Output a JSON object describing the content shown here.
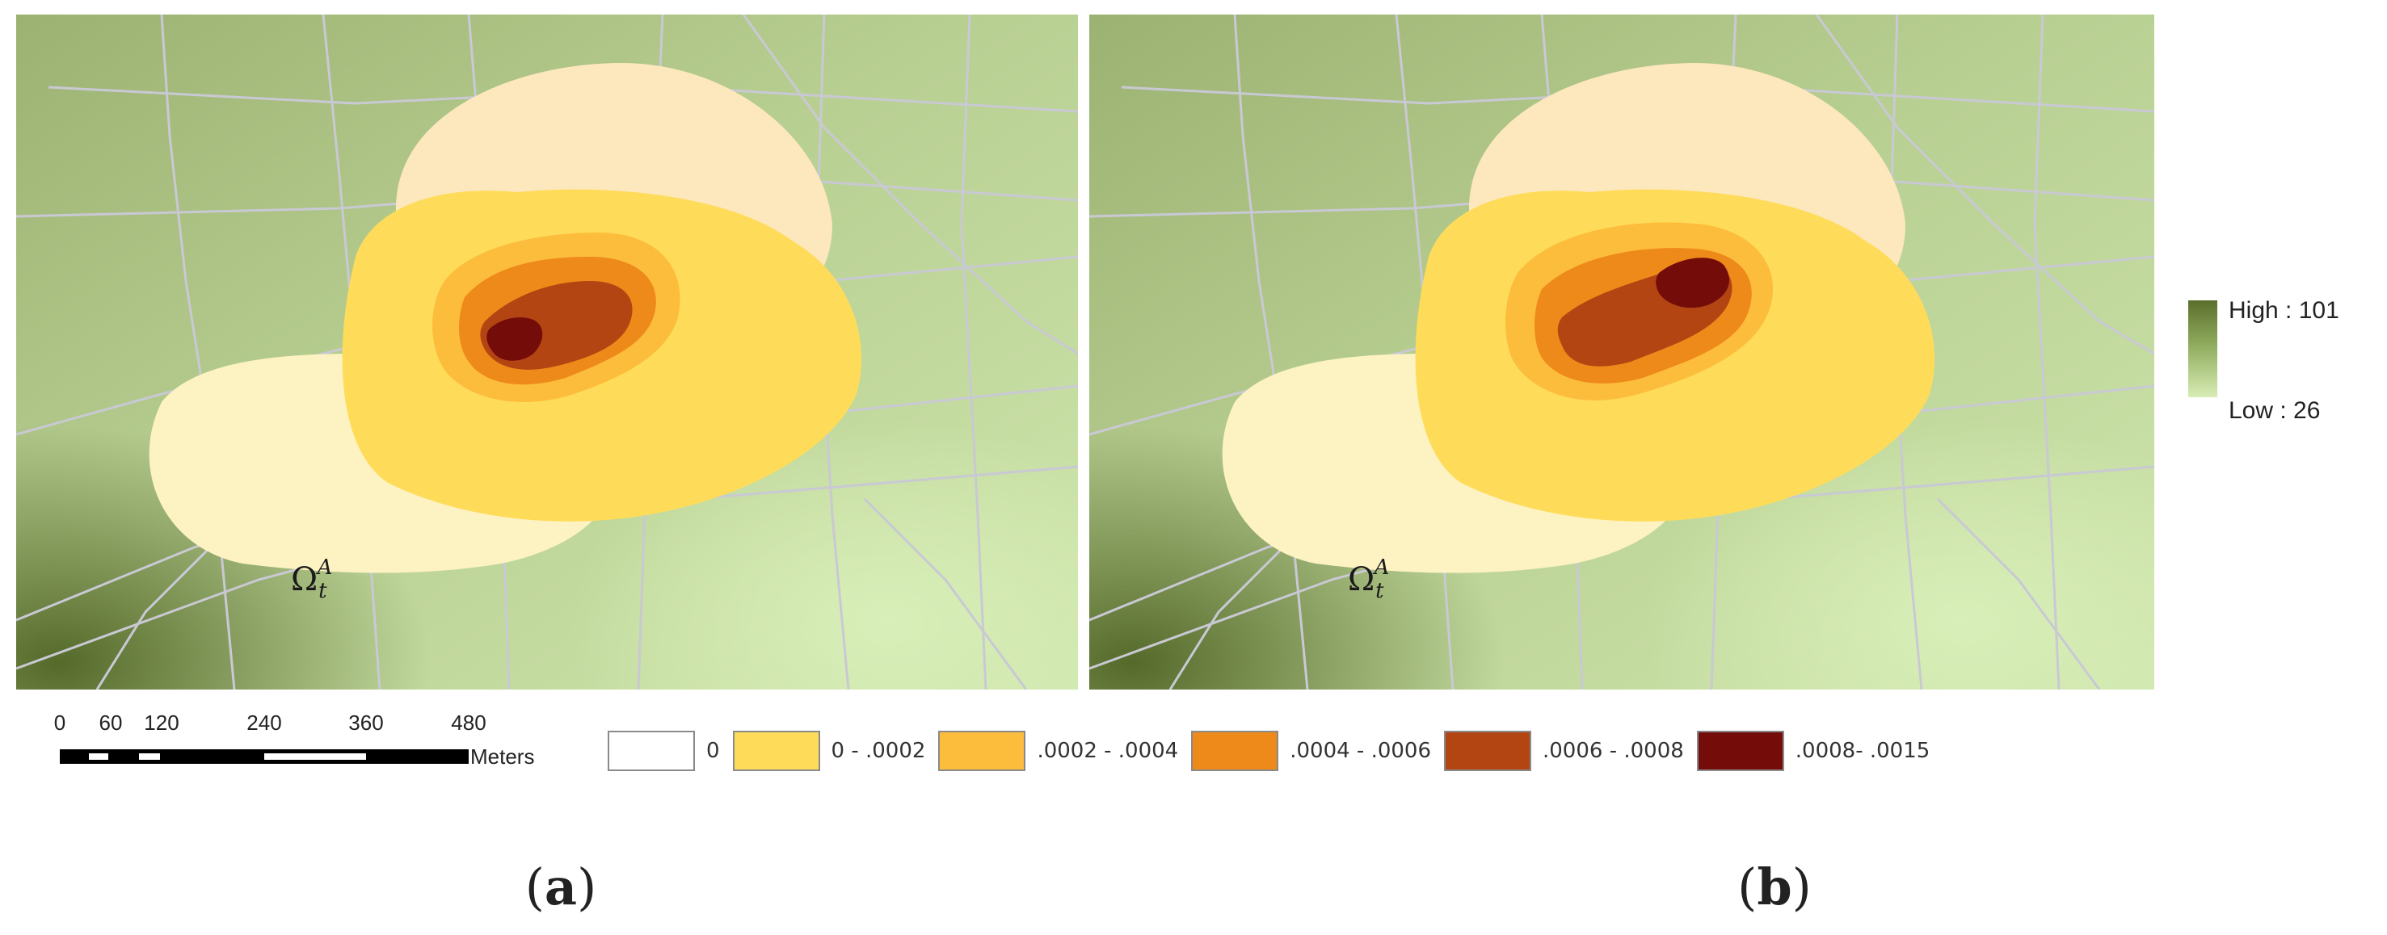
{
  "maps": [
    {
      "id": "a",
      "caption": "a",
      "region_label": {
        "symbol": "Ω",
        "subscript": "t",
        "superscript": "A"
      }
    },
    {
      "id": "b",
      "caption": "b",
      "region_label": {
        "symbol": "Ω",
        "subscript": "t",
        "superscript": "A"
      }
    }
  ],
  "elevation_legend": {
    "high": "High : 101",
    "low": "Low : 26",
    "colors": [
      "#5b6e2c",
      "#d8ecb4"
    ]
  },
  "scale_bar": {
    "ticks": [
      "0",
      "60",
      "120",
      "240",
      "360",
      "480"
    ],
    "units": "Meters"
  },
  "density_legend": [
    {
      "label": "0",
      "color": "#ffffff"
    },
    {
      "label": "0 - .0002",
      "color": "#fedc5a"
    },
    {
      "label": ".0002 - .0004",
      "color": "#fdbd3c"
    },
    {
      "label": ".0004 - .0006",
      "color": "#ee8a1a"
    },
    {
      "label": ".0006 - .0008",
      "color": "#b34512"
    },
    {
      "label": ".0008- .0015",
      "color": "#740c0a"
    }
  ],
  "colors": {
    "outer_zone": "#fdf2c2",
    "outer_zone_top": "#fde7bd",
    "road": "#c9c9d4"
  }
}
